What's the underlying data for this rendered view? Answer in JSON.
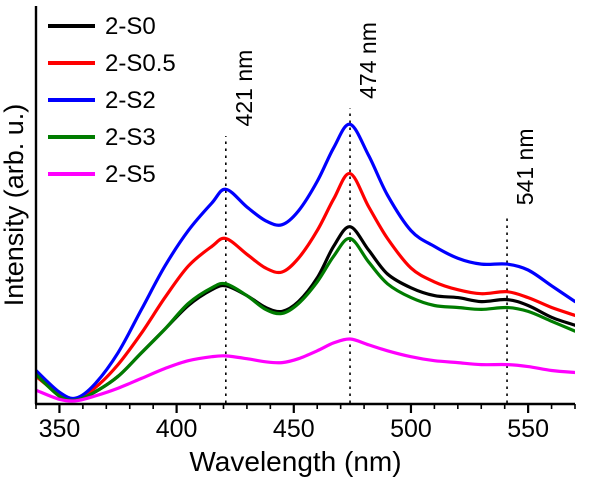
{
  "chart_data": {
    "type": "line",
    "title": "",
    "xlabel": "Wavelength (nm)",
    "ylabel": "Intensity (arb. u.)",
    "xlim": [
      340,
      570
    ],
    "ylim": [
      0,
      1
    ],
    "x_ticks": [
      350,
      400,
      450,
      500,
      550
    ],
    "grid": false,
    "legend_position": "top-left",
    "axis_color": "#000000",
    "x": [
      340,
      350,
      357,
      365,
      375,
      385,
      395,
      405,
      415,
      421,
      430,
      438,
      445,
      452,
      460,
      467,
      474,
      482,
      490,
      500,
      510,
      520,
      530,
      541,
      550,
      560,
      570
    ],
    "series": [
      {
        "name": "2-S0",
        "color": "#000000",
        "values": [
          0.08,
          0.02,
          0.01,
          0.03,
          0.07,
          0.13,
          0.19,
          0.25,
          0.29,
          0.3,
          0.275,
          0.245,
          0.235,
          0.26,
          0.32,
          0.4,
          0.45,
          0.39,
          0.33,
          0.295,
          0.275,
          0.27,
          0.26,
          0.265,
          0.25,
          0.22,
          0.2
        ]
      },
      {
        "name": "2-S0.5",
        "color": "#fe0000",
        "values": [
          0.07,
          0.025,
          0.012,
          0.04,
          0.1,
          0.18,
          0.27,
          0.35,
          0.4,
          0.42,
          0.38,
          0.345,
          0.335,
          0.37,
          0.44,
          0.52,
          0.585,
          0.5,
          0.42,
          0.345,
          0.31,
          0.29,
          0.28,
          0.285,
          0.27,
          0.245,
          0.225
        ]
      },
      {
        "name": "2-S2",
        "color": "#0000fe",
        "values": [
          0.085,
          0.03,
          0.015,
          0.05,
          0.13,
          0.24,
          0.35,
          0.44,
          0.51,
          0.545,
          0.5,
          0.465,
          0.455,
          0.49,
          0.565,
          0.65,
          0.71,
          0.63,
          0.53,
          0.44,
          0.4,
          0.37,
          0.355,
          0.355,
          0.34,
          0.3,
          0.26
        ]
      },
      {
        "name": "2-S3",
        "color": "#007c00",
        "values": [
          0.075,
          0.02,
          0.01,
          0.03,
          0.07,
          0.13,
          0.19,
          0.255,
          0.295,
          0.305,
          0.275,
          0.24,
          0.23,
          0.255,
          0.31,
          0.375,
          0.42,
          0.36,
          0.305,
          0.27,
          0.25,
          0.245,
          0.24,
          0.245,
          0.235,
          0.21,
          0.185
        ]
      },
      {
        "name": "2-S5",
        "color": "#ff00fe",
        "values": [
          0.035,
          0.012,
          0.008,
          0.02,
          0.04,
          0.065,
          0.09,
          0.11,
          0.12,
          0.122,
          0.115,
          0.107,
          0.105,
          0.115,
          0.135,
          0.155,
          0.165,
          0.15,
          0.135,
          0.12,
          0.11,
          0.105,
          0.1,
          0.1,
          0.095,
          0.085,
          0.08
        ]
      }
    ],
    "annotations": [
      {
        "label": "421 nm",
        "x": 421,
        "line_top": 0.68
      },
      {
        "label": "474 nm",
        "x": 474,
        "line_top": 0.75
      },
      {
        "label": "541 nm",
        "x": 541,
        "line_top": 0.48
      }
    ]
  }
}
